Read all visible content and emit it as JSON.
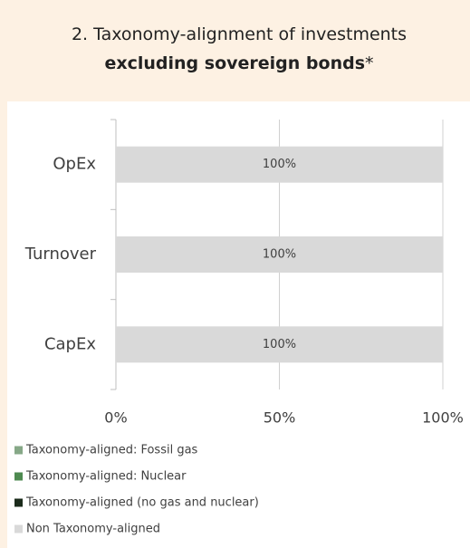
{
  "chart_data": {
    "type": "stacked_barh",
    "title": [
      "2. Taxonomy-alignment of investments ",
      "excluding sovereign bonds",
      "*"
    ],
    "categories": [
      "OpEx",
      "Turnover",
      "CapEx"
    ],
    "series": [
      {
        "name": "Taxonomy-aligned: Fossil gas",
        "color": "#86a887",
        "values": [
          0,
          0,
          0
        ]
      },
      {
        "name": "Taxonomy-aligned: Nuclear",
        "color": "#4e8a50",
        "values": [
          0,
          0,
          0
        ]
      },
      {
        "name": "Taxonomy-aligned (no gas and nuclear)",
        "color": "#1b2b1b",
        "values": [
          0,
          0,
          0
        ],
        "value_labels": [
          "%",
          "%",
          "%"
        ],
        "label_color": "#ffffff"
      },
      {
        "name": "Non Taxonomy-aligned",
        "color": "#d9d9d9",
        "values": [
          100,
          100,
          100
        ],
        "value_labels": [
          "100%",
          "100%",
          "100%"
        ],
        "label_color": "#404040"
      }
    ],
    "xlim": [
      0,
      100
    ],
    "xticks": [
      {
        "value": 0,
        "label": "0%"
      },
      {
        "value": 50,
        "label": "50%"
      },
      {
        "value": 100,
        "label": "100%"
      }
    ],
    "grid": true
  }
}
